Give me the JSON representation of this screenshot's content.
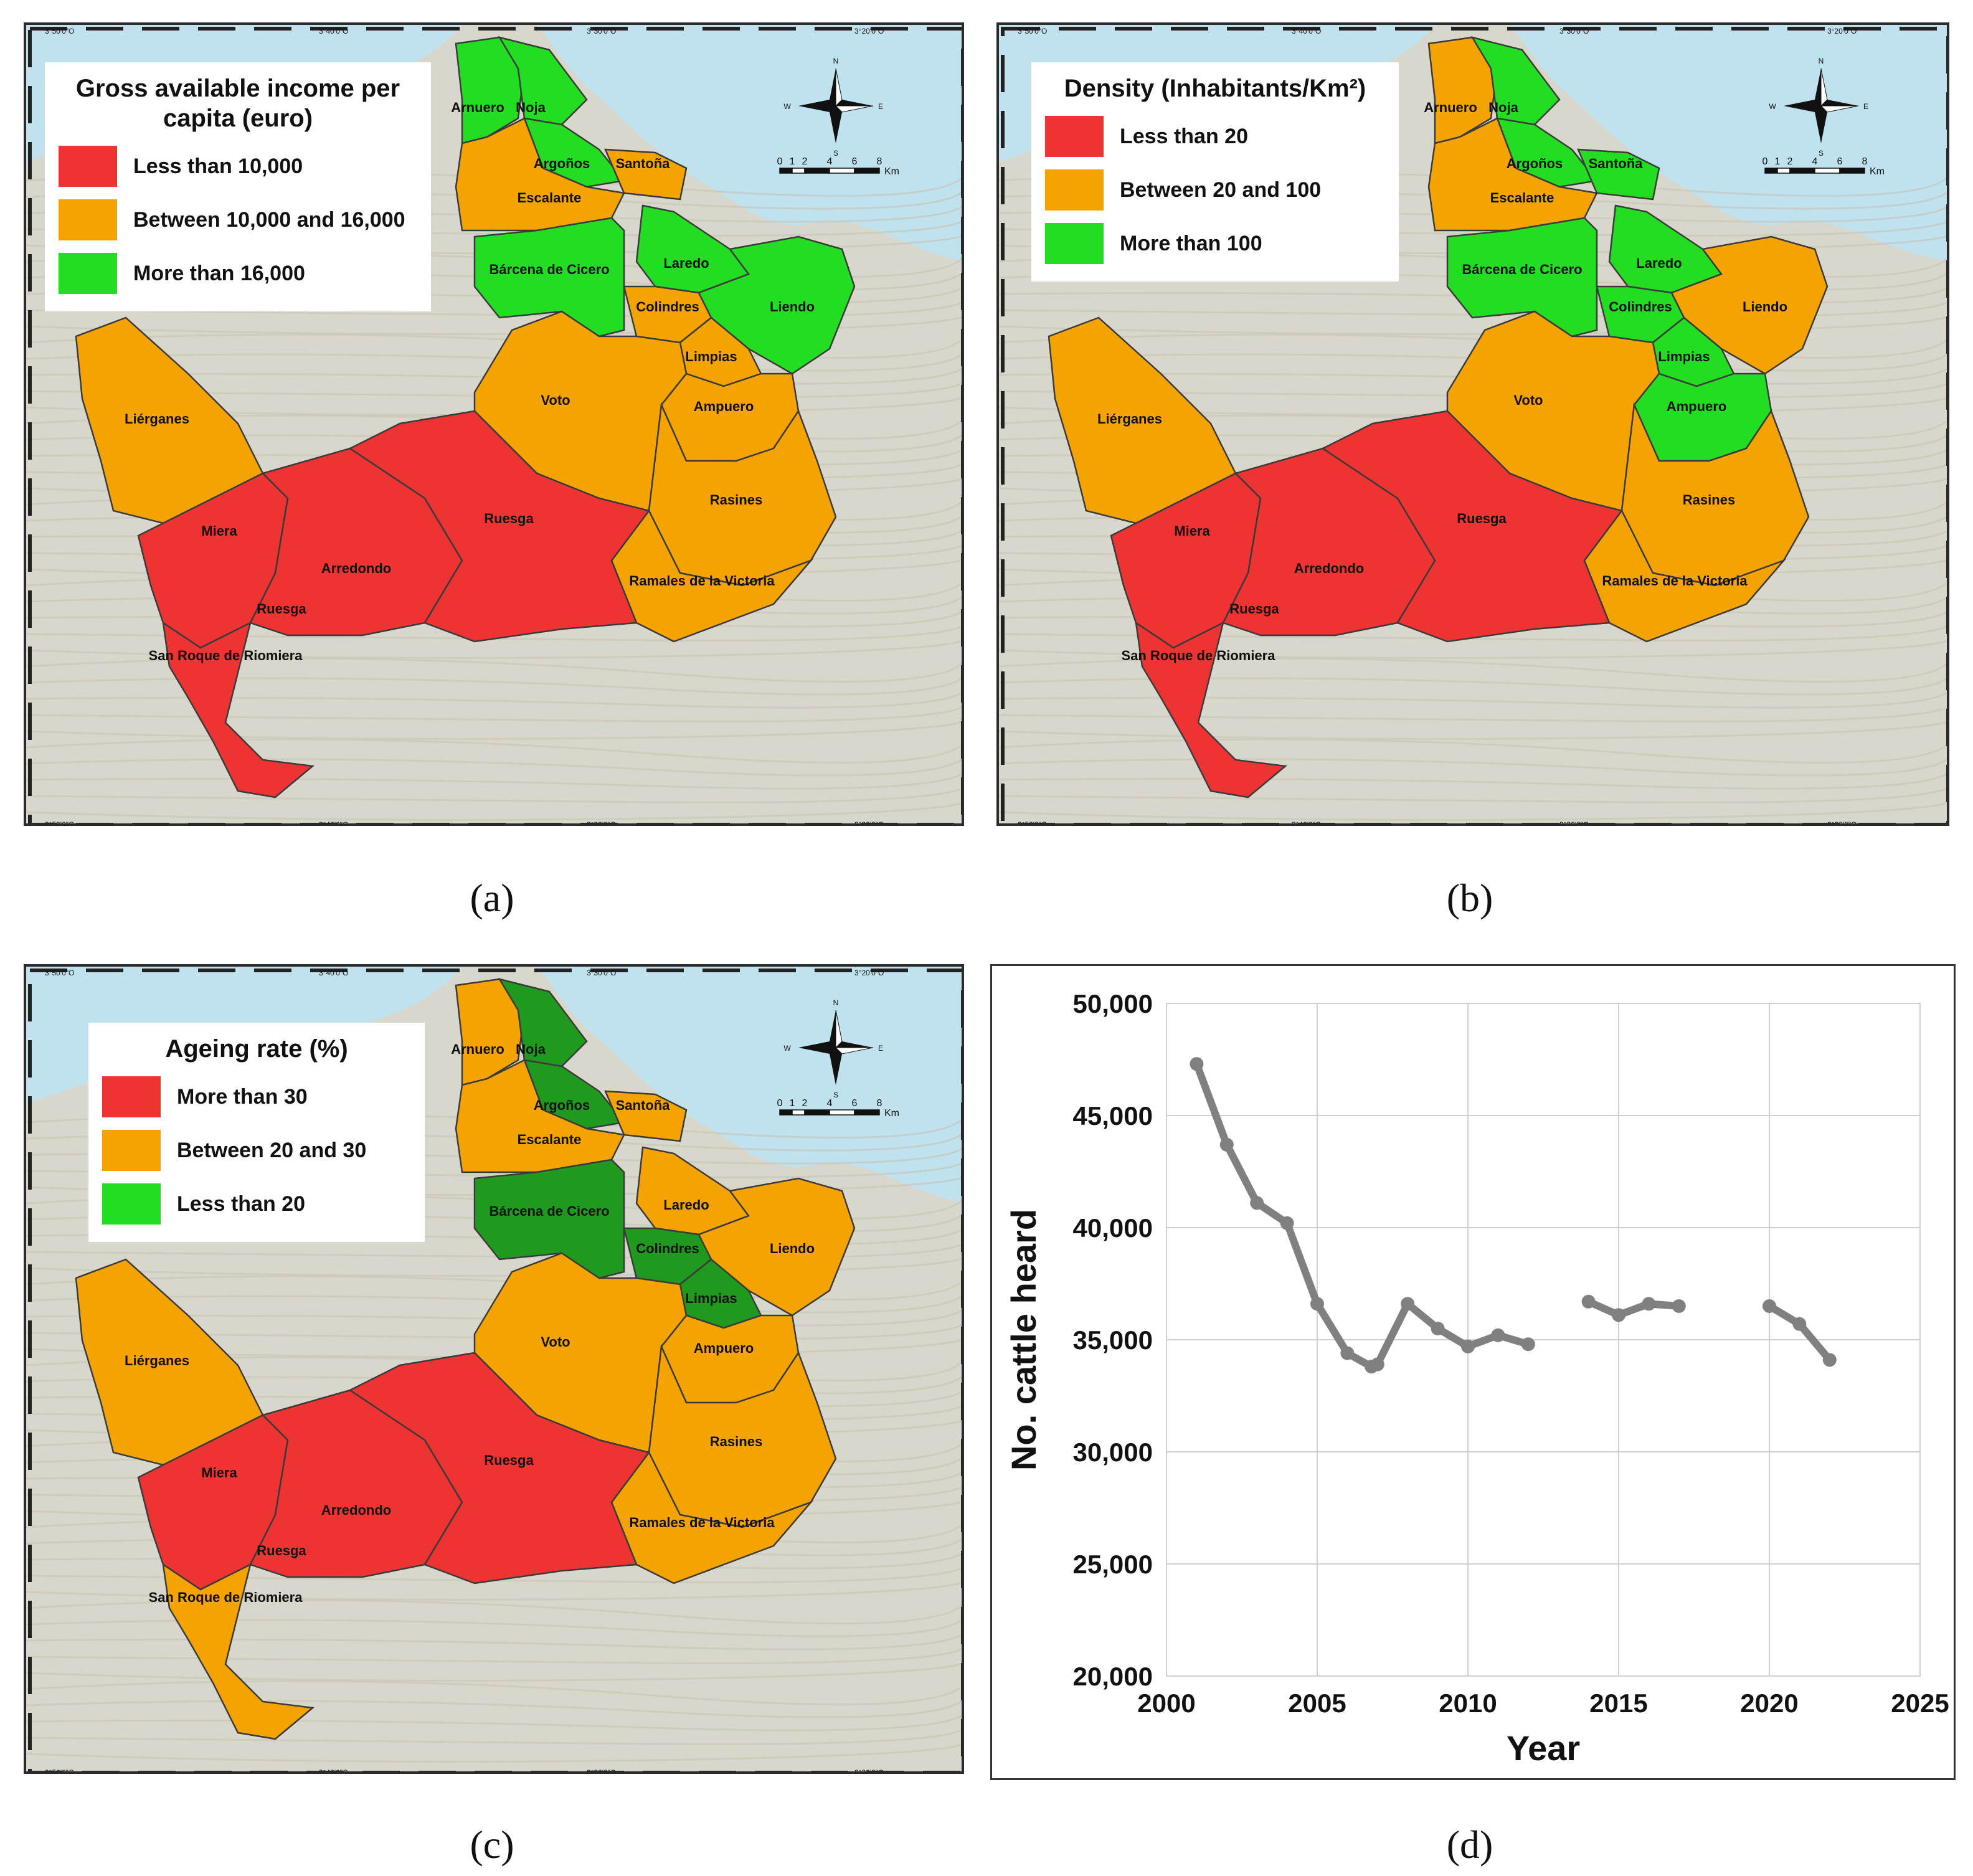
{
  "panels": {
    "a": {
      "label": "(a)",
      "legend": {
        "title": "Gross available income per capita (euro)",
        "items": [
          {
            "label": "Less than 10,000",
            "color": "#ee3333"
          },
          {
            "label": "Between 10,000 and 16,000",
            "color": "#f5a300"
          },
          {
            "label": "More than 16,000",
            "color": "#22dd22"
          }
        ]
      },
      "municipality_classes": {
        "Arnuero": "green",
        "Noja": "green",
        "Argoños": "green",
        "Santoña": "orange",
        "Escalante": "orange",
        "Bárcena de Cicero": "green",
        "Laredo": "green",
        "Colindres": "orange",
        "Liendo": "green",
        "Limpias": "orange",
        "Voto": "orange",
        "Ampuero": "orange",
        "Rasines": "orange",
        "Ramales de la Victoria": "orange",
        "Liérganes": "orange",
        "Miera": "red",
        "Arredondo": "red",
        "Ruesga": "red",
        "San Roque de Riomiera": "red"
      }
    },
    "b": {
      "label": "(b)",
      "legend": {
        "title": "Density (Inhabitants/Km²)",
        "items": [
          {
            "label": "Less than 20",
            "color": "#ee3333"
          },
          {
            "label": "Between 20 and 100",
            "color": "#f5a300"
          },
          {
            "label": "More than 100",
            "color": "#22dd22"
          }
        ]
      },
      "municipality_classes": {
        "Arnuero": "orange",
        "Noja": "green",
        "Argoños": "green",
        "Santoña": "green",
        "Escalante": "orange",
        "Bárcena de Cicero": "green",
        "Laredo": "green",
        "Colindres": "green",
        "Liendo": "orange",
        "Limpias": "green",
        "Voto": "orange",
        "Ampuero": "green",
        "Rasines": "orange",
        "Ramales de la Victoria": "orange",
        "Liérganes": "orange",
        "Miera": "red",
        "Arredondo": "red",
        "Ruesga": "red",
        "San Roque de Riomiera": "red"
      }
    },
    "c": {
      "label": "(c)",
      "legend": {
        "title": "Ageing rate (%)",
        "items": [
          {
            "label": "More than 30",
            "color": "#ee3333"
          },
          {
            "label": "Between 20 and 30",
            "color": "#f5a300"
          },
          {
            "label": "Less than 20",
            "color": "#22dd22"
          }
        ]
      },
      "municipality_classes": {
        "Arnuero": "orange",
        "Noja": "darkgreen",
        "Argoños": "darkgreen",
        "Santoña": "orange",
        "Escalante": "orange",
        "Bárcena de Cicero": "darkgreen",
        "Laredo": "orange",
        "Colindres": "darkgreen",
        "Liendo": "orange",
        "Limpias": "darkgreen",
        "Voto": "orange",
        "Ampuero": "orange",
        "Rasines": "orange",
        "Ramales de la Victoria": "orange",
        "Liérganes": "orange",
        "Miera": "red",
        "Arredondo": "red",
        "Ruesga": "red",
        "San Roque de Riomiera": "orange"
      }
    },
    "d": {
      "label": "(d)"
    }
  },
  "municipalities": [
    "Arnuero",
    "Noja",
    "Argoños",
    "Santoña",
    "Escalante",
    "Bárcena de Cicero",
    "Laredo",
    "Colindres",
    "Liendo",
    "Limpias",
    "Voto",
    "Ampuero",
    "Rasines",
    "Ramales de la Victoria",
    "Liérganes",
    "Miera",
    "Arredondo",
    "Ruesga",
    "San Roque de Riomiera"
  ],
  "class_colors": {
    "red": "#ee3333",
    "orange": "#f5a300",
    "green": "#22dd22",
    "darkgreen": "#1f9a1f"
  },
  "map_furniture": {
    "compass": {
      "n": "N",
      "s": "S",
      "e": "E",
      "w": "W"
    },
    "scale_ticks": [
      "0",
      "1",
      "2",
      "4",
      "6",
      "8"
    ],
    "scale_unit": "Km",
    "lon_ticks": [
      "3°50'0\"O",
      "3°40'0\"O",
      "3°30'0\"O",
      "3°20'0\"O"
    ],
    "lat_ticks": [
      "43°30'0\"N",
      "43°20'0\"N",
      "43°10'0\"N"
    ]
  },
  "chart_data": {
    "type": "line",
    "title": "",
    "xlabel": "Year",
    "ylabel": "No. cattle heard",
    "xlim": [
      2000,
      2025
    ],
    "ylim": [
      20000,
      50000
    ],
    "xticks": [
      2000,
      2005,
      2010,
      2015,
      2020,
      2025
    ],
    "yticks": [
      20000,
      25000,
      30000,
      35000,
      40000,
      45000,
      50000
    ],
    "ytick_labels": [
      "20,000",
      "25,000",
      "30,000",
      "35,000",
      "40,000",
      "45,000",
      "50,000"
    ],
    "grid": true,
    "line_color": "#808080",
    "segments": [
      {
        "x": [
          2001,
          2002,
          2003,
          2004,
          2005,
          2006,
          2006.8,
          2007,
          2008,
          2009,
          2010,
          2011,
          2012
        ],
        "y": [
          47300,
          43700,
          41100,
          40200,
          36600,
          34400,
          33800,
          33900,
          36600,
          35500,
          34700,
          35200,
          34800
        ]
      },
      {
        "x": [
          2014,
          2015,
          2016,
          2017
        ],
        "y": [
          36700,
          36100,
          36600,
          36500
        ]
      },
      {
        "x": [
          2020,
          2021,
          2022
        ],
        "y": [
          36500,
          35700,
          34100
        ]
      }
    ]
  }
}
